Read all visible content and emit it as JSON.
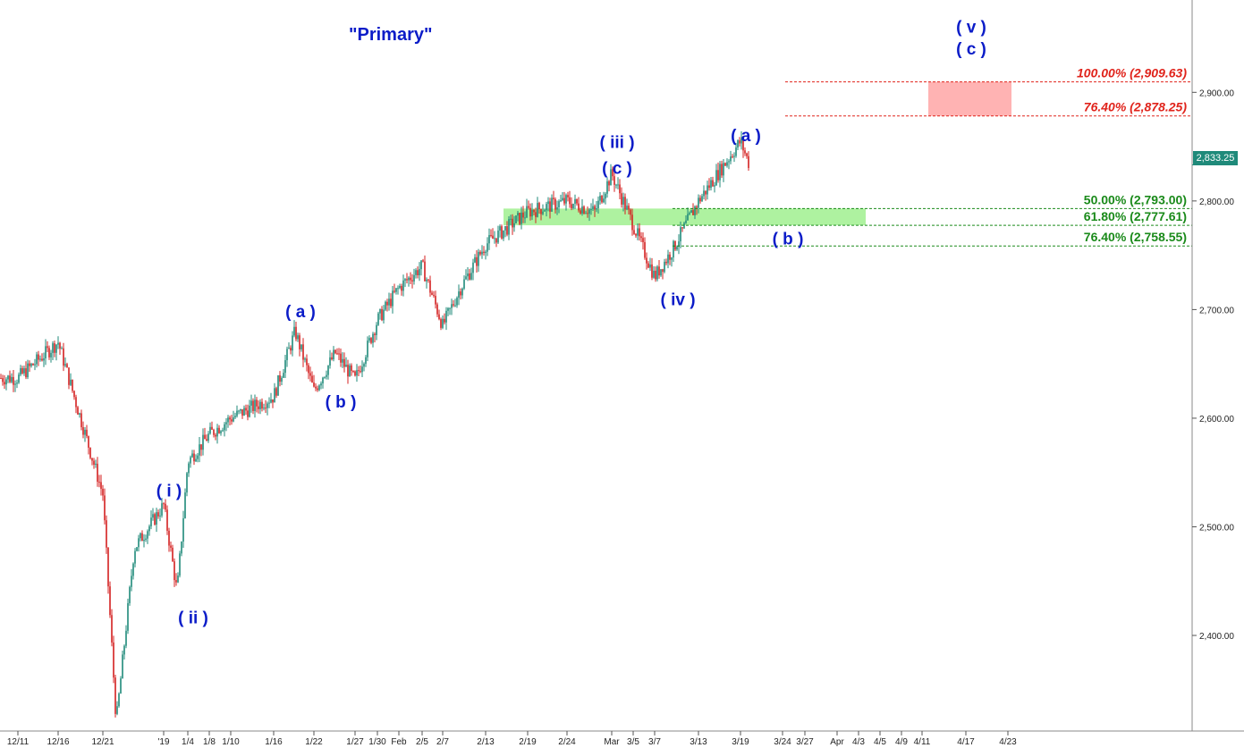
{
  "chart_data": {
    "type": "candlestick",
    "title": "\"Primary\"",
    "price_axis": {
      "ylim": [
        2312,
        2985
      ],
      "ticks": [
        2400,
        2500,
        2600,
        2700,
        2800,
        2900
      ],
      "tick_labels": [
        "2,400.00",
        "2,500.00",
        "2,600.00",
        "2,700.00",
        "2,800.00",
        "2,900.00"
      ],
      "current_price": 2833.25,
      "current_price_label": "2,833.25"
    },
    "date_axis": {
      "labels": [
        "12/11",
        "12/16",
        "12/21",
        "'19",
        "1/4",
        "1/8",
        "1/10",
        "1/16",
        "1/22",
        "1/27",
        "1/30",
        "Feb",
        "2/5",
        "2/7",
        "2/13",
        "2/19",
        "2/24",
        "Mar",
        "3/5",
        "3/7",
        "3/13",
        "3/19",
        "3/24",
        "3/27",
        "Apr",
        "4/3",
        "4/5",
        "4/9",
        "4/11",
        "4/17",
        "4/23"
      ]
    },
    "series": [
      {
        "x": [
          "12/11",
          "12/16",
          "12/21",
          "12/24",
          "12/26",
          "'19",
          "1/3",
          "1/4",
          "1/8",
          "1/10",
          "1/16",
          "1/18",
          "1/22",
          "1/24",
          "1/27",
          "1/30",
          "Feb",
          "2/5",
          "2/7",
          "2/8",
          "2/13",
          "2/19",
          "2/24",
          "2/27",
          "Mar",
          "3/5",
          "3/7",
          "3/8",
          "3/13",
          "3/19",
          "3/20"
        ],
        "values": [
          2637,
          2670,
          2530,
          2320,
          2480,
          2520,
          2440,
          2560,
          2585,
          2600,
          2620,
          2680,
          2625,
          2660,
          2635,
          2690,
          2720,
          2740,
          2685,
          2720,
          2760,
          2790,
          2800,
          2790,
          2825,
          2778,
          2730,
          2755,
          2800,
          2855,
          2833
        ]
      }
    ],
    "wave_labels": [
      {
        "text": "( i )",
        "date": "'19",
        "price": 2528
      },
      {
        "text": "( ii )",
        "date": "1/4",
        "price": 2411
      },
      {
        "text": "( a )",
        "date": "1/18",
        "price": 2693
      },
      {
        "text": "( b )",
        "date": "1/24",
        "price": 2610
      },
      {
        "text": "( iii )",
        "date": "Mar",
        "price": 2849
      },
      {
        "text": "( c )",
        "date": "Mar",
        "price": 2825
      },
      {
        "text": "( iv )",
        "date": "3/8",
        "price": 2704
      },
      {
        "text": "( a )",
        "date": "3/19",
        "price": 2855
      },
      {
        "text": "( b )",
        "date": "3/24",
        "price": 2760
      },
      {
        "text": "( v )",
        "date": "4/17",
        "price": 2955
      },
      {
        "text": "( c )",
        "date": "4/17",
        "price": 2935
      }
    ],
    "fib_levels": [
      {
        "label": "100.00% (2,909.63)",
        "price": 2909.63,
        "color": "#e0231b",
        "italic": true
      },
      {
        "label": "76.40% (2,878.25)",
        "price": 2878.25,
        "color": "#e0231b",
        "italic": true
      },
      {
        "label": "50.00% (2,793.00)",
        "price": 2793.0,
        "color": "#1a8a1a",
        "italic": false
      },
      {
        "label": "61.80% (2,777.61)",
        "price": 2777.61,
        "color": "#1a8a1a",
        "italic": false
      },
      {
        "label": "76.40% (2,758.55)",
        "price": 2758.55,
        "color": "#1a8a1a",
        "italic": false
      }
    ],
    "target_zones": [
      {
        "name": "red-target-zone",
        "low": 2878.25,
        "high": 2909.63,
        "color": "#ffb3b3"
      },
      {
        "name": "green-support-zone",
        "low": 2777.61,
        "high": 2793.0,
        "color": "#aef2a0"
      }
    ],
    "colors": {
      "up": "#1f8a7a",
      "down": "#d42020",
      "wave_label": "#0b1cc8",
      "grid": "#cccccc"
    }
  }
}
